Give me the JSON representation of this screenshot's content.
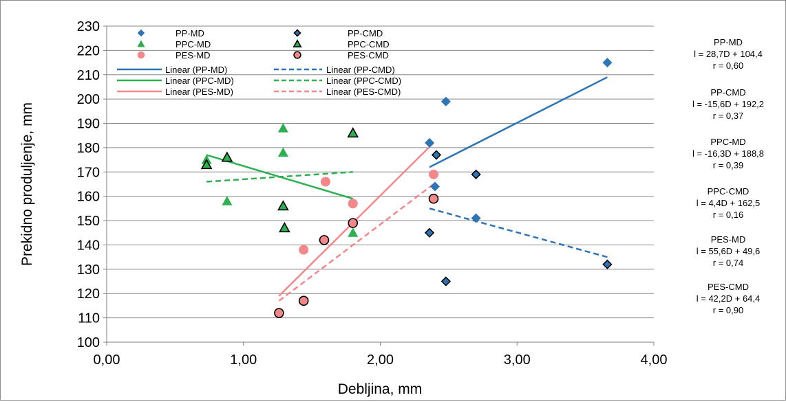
{
  "chart_data": {
    "type": "scatter",
    "xlabel": "Debljina, mm",
    "ylabel": "Prekidno produljenje, mm",
    "xlim": [
      0,
      4
    ],
    "ylim": [
      100,
      230
    ],
    "x_ticks": [
      "0,00",
      "1,00",
      "2,00",
      "3,00",
      "4,00"
    ],
    "y_ticks": [
      "100",
      "110",
      "120",
      "130",
      "140",
      "150",
      "160",
      "170",
      "180",
      "190",
      "200",
      "210",
      "220",
      "230"
    ],
    "grid": "horizontal",
    "legend_position": "top-left",
    "series": [
      {
        "name": "PP-MD",
        "marker": "diamond",
        "color": "#2E75B6",
        "points": [
          [
            2.36,
            182
          ],
          [
            2.4,
            164
          ],
          [
            2.48,
            199
          ],
          [
            2.7,
            151
          ],
          [
            3.66,
            215
          ]
        ]
      },
      {
        "name": "PP-CMD",
        "marker": "diamond-outline",
        "color": "#2E75B6",
        "points": [
          [
            2.36,
            145
          ],
          [
            2.41,
            177
          ],
          [
            2.48,
            125
          ],
          [
            2.7,
            169
          ],
          [
            3.66,
            132
          ]
        ]
      },
      {
        "name": "PPC-MD",
        "marker": "triangle",
        "color": "#2CB050",
        "points": [
          [
            0.73,
            175
          ],
          [
            0.88,
            158
          ],
          [
            1.29,
            188
          ],
          [
            1.29,
            178
          ],
          [
            1.8,
            145
          ]
        ]
      },
      {
        "name": "PPC-CMD",
        "marker": "triangle-outline",
        "color": "#2CB050",
        "points": [
          [
            0.73,
            173
          ],
          [
            0.88,
            176
          ],
          [
            1.29,
            156
          ],
          [
            1.3,
            147
          ],
          [
            1.8,
            186
          ]
        ]
      },
      {
        "name": "PES-MD",
        "marker": "circle",
        "color": "#F4878A",
        "points": [
          [
            1.44,
            138
          ],
          [
            1.6,
            166
          ],
          [
            1.8,
            157
          ],
          [
            2.39,
            169
          ]
        ]
      },
      {
        "name": "PES-CMD",
        "marker": "circle-outline",
        "color": "#F4878A",
        "points": [
          [
            1.26,
            112
          ],
          [
            1.44,
            117
          ],
          [
            1.59,
            142
          ],
          [
            1.8,
            149
          ],
          [
            2.39,
            159
          ]
        ]
      }
    ],
    "trendlines": [
      {
        "name": "Linear (PP-MD)",
        "style": "solid",
        "color": "#2E75B6",
        "x": [
          2.36,
          3.66
        ],
        "y": [
          172,
          209
        ]
      },
      {
        "name": "Linear (PP-CMD)",
        "style": "dashed",
        "color": "#2E75B6",
        "x": [
          2.36,
          3.66
        ],
        "y": [
          155,
          135
        ]
      },
      {
        "name": "Linear (PPC-MD)",
        "style": "solid",
        "color": "#2CB050",
        "x": [
          0.73,
          1.8
        ],
        "y": [
          177,
          159
        ]
      },
      {
        "name": "Linear (PPC-CMD)",
        "style": "dashed",
        "color": "#2CB050",
        "x": [
          0.73,
          1.8
        ],
        "y": [
          166,
          170
        ]
      },
      {
        "name": "Linear (PES-MD)",
        "style": "solid",
        "color": "#F4878A",
        "x": [
          1.26,
          2.39
        ],
        "y": [
          119,
          182
        ]
      },
      {
        "name": "Linear (PES-CMD)",
        "style": "dashed",
        "color": "#F4878A",
        "x": [
          1.26,
          2.39
        ],
        "y": [
          117,
          165
        ]
      }
    ],
    "annotations": [
      {
        "lines": [
          "PP-MD",
          "l = 28,7D + 104,4",
          "r = 0,60"
        ]
      },
      {
        "lines": [
          "PP-CMD",
          "l = -15,6D + 192,2",
          "r = 0,37"
        ]
      },
      {
        "lines": [
          "PPC-MD",
          "l = -16,3D + 188,8",
          "r = 0,39"
        ]
      },
      {
        "lines": [
          "PPC-CMD",
          "l = 4,4D + 162,5",
          "r = 0,16"
        ]
      },
      {
        "lines": [
          "PES-MD",
          "l = 55,6D + 49,6",
          "r = 0,74"
        ]
      },
      {
        "lines": [
          "PES-CMD",
          "l = 42,2D + 64,4",
          "r = 0,90"
        ]
      }
    ]
  }
}
